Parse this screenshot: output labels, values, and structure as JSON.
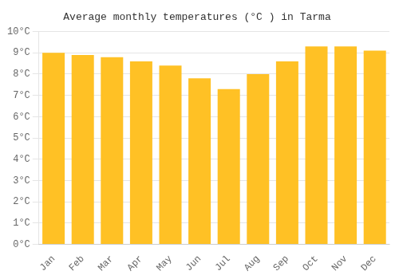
{
  "chart_data": {
    "type": "bar",
    "title": "Average monthly temperatures (°C ) in Tarma",
    "categories": [
      "Jan",
      "Feb",
      "Mar",
      "Apr",
      "May",
      "Jun",
      "Jul",
      "Aug",
      "Sep",
      "Oct",
      "Nov",
      "Dec"
    ],
    "values": [
      9.0,
      8.9,
      8.8,
      8.6,
      8.4,
      7.8,
      7.3,
      8.0,
      8.6,
      9.3,
      9.3,
      9.1
    ],
    "color": "#FFC125",
    "ylim": [
      0,
      10
    ],
    "yticks": [
      {
        "value": 0,
        "label": "0°C"
      },
      {
        "value": 1,
        "label": "1°C"
      },
      {
        "value": 2,
        "label": "2°C"
      },
      {
        "value": 3,
        "label": "3°C"
      },
      {
        "value": 4,
        "label": "4°C"
      },
      {
        "value": 5,
        "label": "5°C"
      },
      {
        "value": 6,
        "label": "6°C"
      },
      {
        "value": 7,
        "label": "7°C"
      },
      {
        "value": 8,
        "label": "8°C"
      },
      {
        "value": 9,
        "label": "9°C"
      },
      {
        "value": 10,
        "label": "10°C"
      }
    ],
    "grid": true
  }
}
